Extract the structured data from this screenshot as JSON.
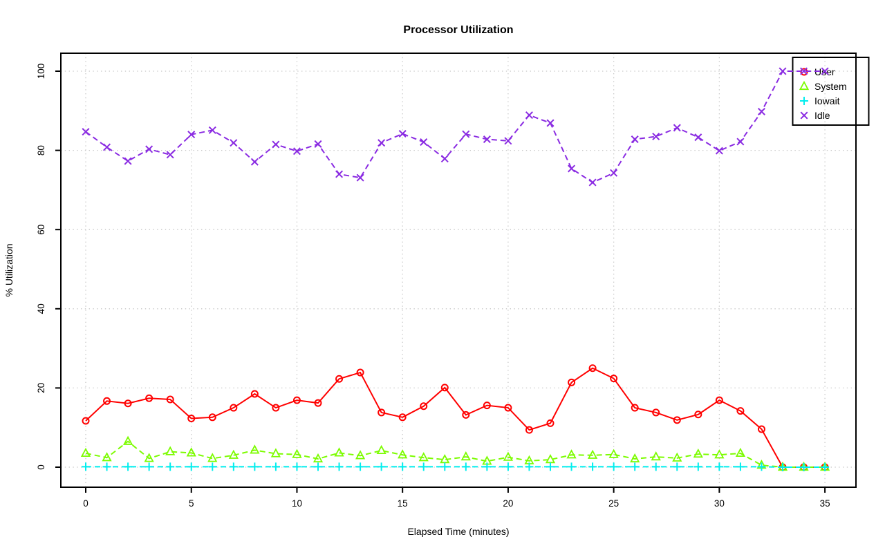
{
  "title": "Processor Utilization",
  "chart_data": {
    "type": "line",
    "title": "Processor Utilization",
    "xlabel": "Elapsed Time (minutes)",
    "ylabel": "% Utilization",
    "xlim": [
      0,
      35
    ],
    "ylim": [
      0,
      100
    ],
    "x_ticks": [
      0,
      5,
      10,
      15,
      20,
      25,
      30,
      35
    ],
    "y_ticks": [
      0,
      20,
      40,
      60,
      80,
      100
    ],
    "grid": true,
    "grid_style": "dotted",
    "legend_position": "topright",
    "colors": {
      "axis": "#000000",
      "grid": "#c8c8c8"
    },
    "x": [
      0,
      1,
      2,
      3,
      4,
      5,
      6,
      7,
      8,
      9,
      10,
      11,
      12,
      13,
      14,
      15,
      16,
      17,
      18,
      19,
      20,
      21,
      22,
      23,
      24,
      25,
      26,
      27,
      28,
      29,
      30,
      31,
      32,
      33,
      34,
      35
    ],
    "series": [
      {
        "name": "User",
        "color": "#ff0000",
        "marker": "circle",
        "line": "solid",
        "values": [
          11.7,
          16.7,
          16.1,
          17.4,
          17.1,
          12.3,
          12.6,
          15.0,
          18.5,
          15.0,
          16.9,
          16.2,
          22.3,
          23.9,
          13.8,
          12.6,
          15.4,
          20.1,
          13.2,
          15.6,
          15.0,
          9.4,
          11.1,
          21.4,
          25.0,
          22.4,
          15.0,
          13.8,
          11.9,
          13.3,
          16.9,
          14.2,
          9.6,
          0,
          0,
          0
        ]
      },
      {
        "name": "System",
        "color": "#7cfc00",
        "marker": "triangle",
        "line": "dashed",
        "values": [
          3.5,
          2.4,
          6.5,
          2.2,
          3.9,
          3.6,
          2.2,
          3.0,
          4.3,
          3.4,
          3.2,
          2.1,
          3.6,
          2.9,
          4.2,
          3.1,
          2.4,
          1.9,
          2.6,
          1.5,
          2.5,
          1.6,
          1.9,
          3.1,
          3.0,
          3.2,
          2.1,
          2.6,
          2.3,
          3.3,
          3.1,
          3.5,
          0.5,
          0,
          0,
          0
        ]
      },
      {
        "name": "Iowait",
        "color": "#00eeee",
        "marker": "plus",
        "line": "dashed",
        "values": [
          0.1,
          0.1,
          0.1,
          0.1,
          0.1,
          0.1,
          0.1,
          0.1,
          0.1,
          0.1,
          0.1,
          0.1,
          0.1,
          0.1,
          0.1,
          0.1,
          0.1,
          0.1,
          0.1,
          0.1,
          0.1,
          0.1,
          0.1,
          0.1,
          0.1,
          0.1,
          0.1,
          0.1,
          0.1,
          0.1,
          0.1,
          0.1,
          0.1,
          0,
          0,
          0
        ]
      },
      {
        "name": "Idle",
        "color": "#8a2be2",
        "marker": "x",
        "line": "dashed",
        "values": [
          84.7,
          80.8,
          77.3,
          80.3,
          78.9,
          84.0,
          85.1,
          81.9,
          77.1,
          81.5,
          79.8,
          81.6,
          74.0,
          73.1,
          81.9,
          84.2,
          82.1,
          77.9,
          84.1,
          82.8,
          82.4,
          88.9,
          86.9,
          75.4,
          71.9,
          74.3,
          82.8,
          83.5,
          85.7,
          83.3,
          79.9,
          82.2,
          89.8,
          100,
          100,
          100
        ]
      }
    ]
  }
}
